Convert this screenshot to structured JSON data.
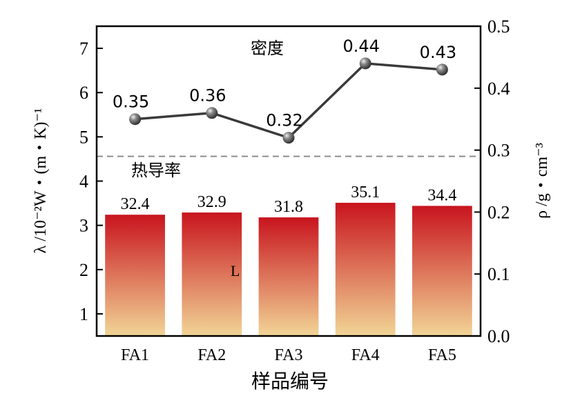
{
  "chart_data": {
    "type": "bar",
    "categories": [
      "FA1",
      "FA2",
      "FA3",
      "FA4",
      "FA5"
    ],
    "xlabel": "样品编号",
    "ylabel_left": "λ /10⁻²W・(m・K)⁻¹",
    "ylabel_right": "ρ /g・cm⁻³",
    "ylim_left": [
      0.5,
      7.5
    ],
    "ylim_right": [
      0.0,
      0.5
    ],
    "yticks_left": [
      1,
      2,
      3,
      4,
      5,
      6,
      7
    ],
    "yticks_right": [
      "0.0",
      "0.1",
      "0.2",
      "0.3",
      "0.4",
      "0.5"
    ],
    "reference_line": {
      "y_right": 0.29,
      "style": "dashed",
      "color": "#8c8c8c"
    },
    "stray_text": "L",
    "series": [
      {
        "name": "热导率",
        "type": "bar",
        "axis": "left",
        "values": [
          3.24,
          3.29,
          3.18,
          3.51,
          3.44
        ],
        "labels": [
          "32.4",
          "32.9",
          "31.8",
          "35.1",
          "34.4"
        ],
        "color_top": "#c8141e",
        "color_bottom": "#f2d596"
      },
      {
        "name": "密度",
        "type": "line",
        "axis": "right",
        "values": [
          0.35,
          0.36,
          0.32,
          0.44,
          0.43
        ],
        "labels": [
          "0.35",
          "0.36",
          "0.32",
          "0.44",
          "0.43"
        ],
        "color": "#3a3a3a"
      }
    ]
  }
}
